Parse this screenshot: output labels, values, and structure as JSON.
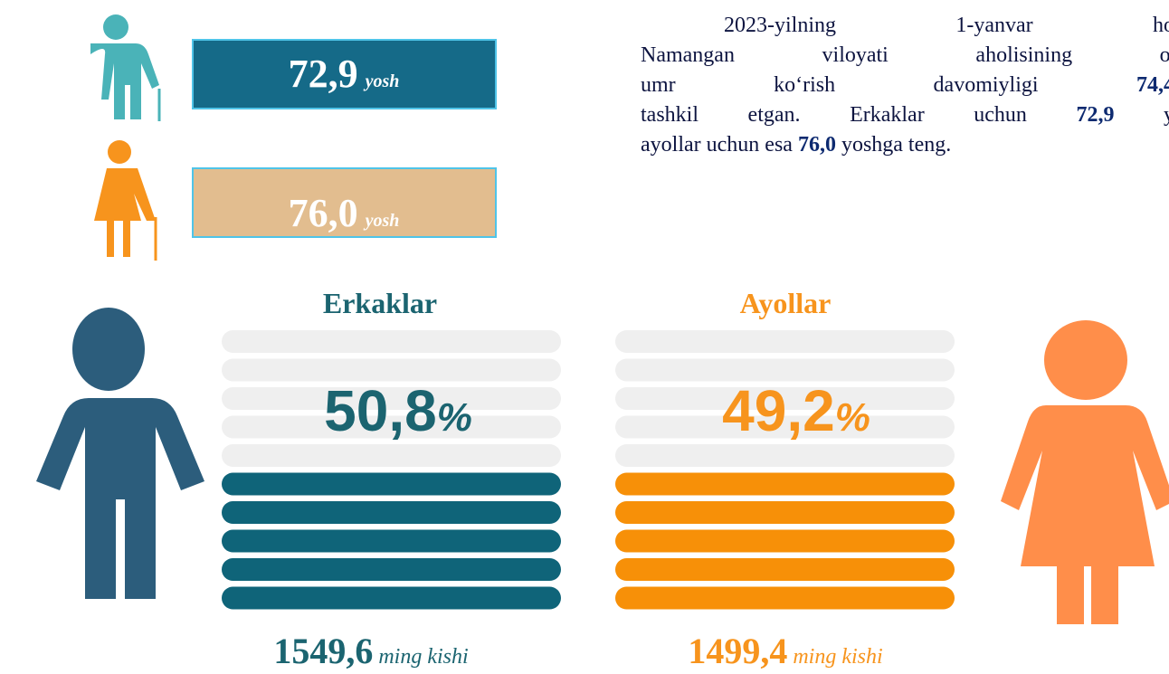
{
  "life_expectancy": {
    "male": {
      "value": "72,9",
      "unit": "yosh"
    },
    "female": {
      "value": "76,0",
      "unit": "yosh"
    }
  },
  "paragraph": [
    [
      {
        "text": "2023-yilning 1-yanvar ho"
      }
    ],
    [
      {
        "text": "Namangan viloyati aholisining o'"
      }
    ],
    [
      {
        "text": "umr ko‘rish davomiyligi "
      },
      {
        "text": "74,4",
        "bold": true
      }
    ],
    [
      {
        "text": "tashkil etgan. Erkaklar uchun "
      },
      {
        "text": "72,9",
        "bold": true
      },
      {
        "text": " y"
      }
    ],
    [
      {
        "text": "ayollar uchun esa "
      },
      {
        "text": "76,0",
        "bold": true
      },
      {
        "text": " yoshga teng."
      }
    ]
  ],
  "population": {
    "male": {
      "title": "Erkaklar",
      "percent": 50.8,
      "percent_label": "50,8",
      "unit": "%",
      "count": "1549,6",
      "count_unit": "ming kishi",
      "color": "#0f6479"
    },
    "female": {
      "title": "Ayollar",
      "percent": 49.2,
      "percent_label": "49,2",
      "unit": "%",
      "count": "1499,4",
      "count_unit": "ming kishi",
      "color": "#f79008"
    }
  }
}
